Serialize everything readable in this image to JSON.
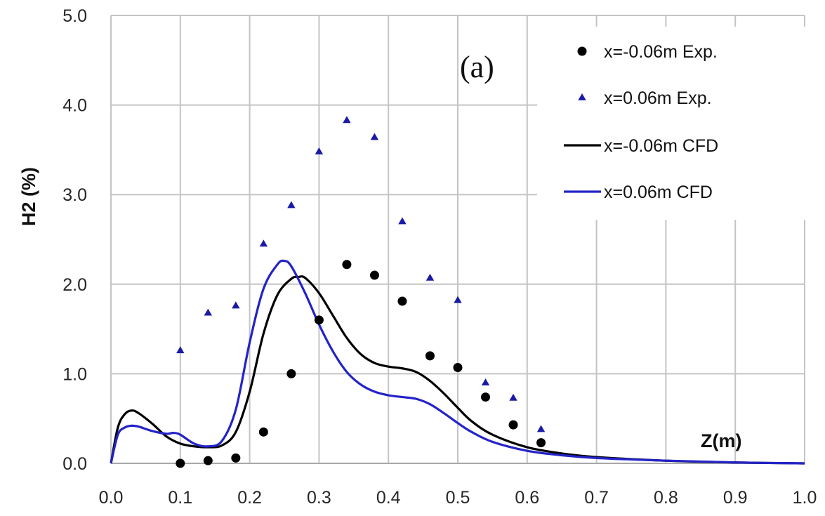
{
  "chart_data": {
    "type": "scatter",
    "panel_label": "(a)",
    "xlabel": "Z(m)",
    "ylabel": "H2 (%)",
    "xlim": [
      0.0,
      1.0
    ],
    "ylim": [
      0.0,
      5.0
    ],
    "x_ticks": [
      "0.0",
      "0.1",
      "0.2",
      "0.3",
      "0.4",
      "0.5",
      "0.6",
      "0.7",
      "0.8",
      "0.9",
      "1.0"
    ],
    "y_ticks": [
      "0.0",
      "1.0",
      "2.0",
      "3.0",
      "4.0",
      "5.0"
    ],
    "grid": true,
    "legend_position": "top-right",
    "series": [
      {
        "name": "x=-0.06m Exp.",
        "kind": "marker",
        "marker": "circle",
        "color": "#000000",
        "x": [
          0.1,
          0.14,
          0.18,
          0.22,
          0.26,
          0.3,
          0.34,
          0.38,
          0.42,
          0.46,
          0.5,
          0.54,
          0.58,
          0.62
        ],
        "y": [
          0.0,
          0.03,
          0.06,
          0.35,
          1.0,
          1.6,
          2.22,
          2.1,
          1.81,
          1.2,
          1.07,
          0.74,
          0.43,
          0.23
        ]
      },
      {
        "name": "x=0.06m Exp.",
        "kind": "marker",
        "marker": "triangle",
        "color": "#1a1aa6",
        "x": [
          0.1,
          0.14,
          0.18,
          0.22,
          0.26,
          0.3,
          0.34,
          0.38,
          0.42,
          0.46,
          0.5,
          0.54,
          0.58,
          0.62
        ],
        "y": [
          1.26,
          1.68,
          1.76,
          2.45,
          2.88,
          3.48,
          3.83,
          3.64,
          2.7,
          2.07,
          1.82,
          0.9,
          0.73,
          0.38
        ]
      },
      {
        "name": "x=-0.06m CFD",
        "kind": "line",
        "color": "#000000",
        "x": [
          0.0,
          0.01,
          0.02,
          0.03,
          0.04,
          0.06,
          0.08,
          0.1,
          0.12,
          0.14,
          0.16,
          0.18,
          0.2,
          0.22,
          0.24,
          0.26,
          0.27,
          0.28,
          0.3,
          0.32,
          0.34,
          0.36,
          0.38,
          0.4,
          0.42,
          0.44,
          0.46,
          0.48,
          0.5,
          0.52,
          0.55,
          0.6,
          0.65,
          0.7,
          0.8,
          0.9,
          1.0
        ],
        "y": [
          0.0,
          0.4,
          0.55,
          0.59,
          0.56,
          0.44,
          0.3,
          0.22,
          0.19,
          0.18,
          0.2,
          0.35,
          0.8,
          1.45,
          1.88,
          2.06,
          2.08,
          2.07,
          1.9,
          1.65,
          1.4,
          1.22,
          1.12,
          1.08,
          1.06,
          1.02,
          0.92,
          0.78,
          0.62,
          0.47,
          0.32,
          0.18,
          0.11,
          0.07,
          0.03,
          0.01,
          0.0
        ]
      },
      {
        "name": "x=0.06m CFD",
        "kind": "line",
        "color": "#2323c8",
        "x": [
          0.0,
          0.01,
          0.02,
          0.03,
          0.04,
          0.06,
          0.08,
          0.09,
          0.1,
          0.12,
          0.14,
          0.16,
          0.18,
          0.2,
          0.22,
          0.24,
          0.25,
          0.26,
          0.28,
          0.3,
          0.32,
          0.34,
          0.36,
          0.38,
          0.4,
          0.42,
          0.44,
          0.46,
          0.48,
          0.5,
          0.52,
          0.55,
          0.6,
          0.65,
          0.7,
          0.8,
          0.9,
          1.0
        ],
        "y": [
          0.0,
          0.32,
          0.4,
          0.42,
          0.41,
          0.36,
          0.33,
          0.34,
          0.32,
          0.22,
          0.19,
          0.25,
          0.6,
          1.35,
          1.95,
          2.22,
          2.26,
          2.2,
          1.9,
          1.55,
          1.25,
          1.02,
          0.88,
          0.8,
          0.76,
          0.74,
          0.72,
          0.66,
          0.56,
          0.45,
          0.35,
          0.24,
          0.14,
          0.09,
          0.06,
          0.03,
          0.01,
          0.0
        ]
      }
    ]
  }
}
